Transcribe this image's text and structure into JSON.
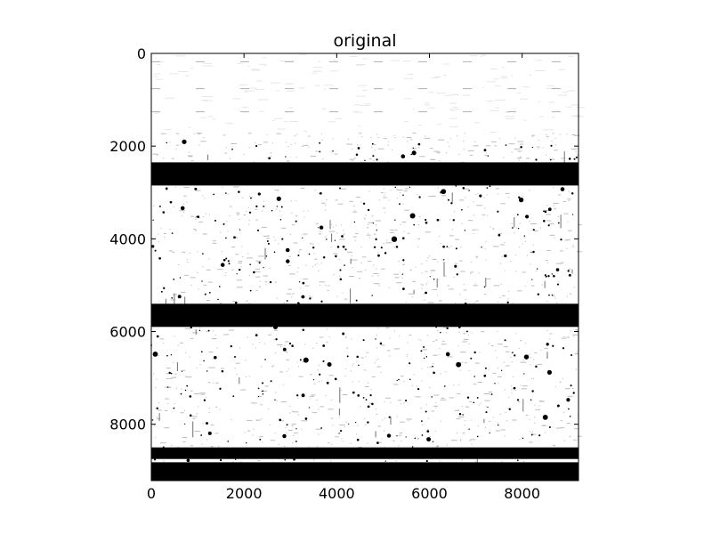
{
  "chart_data": {
    "type": "heatmap",
    "title": "original",
    "xlabel": "",
    "ylabel": "",
    "xlim": [
      0,
      9216
    ],
    "ylim": [
      9216,
      0
    ],
    "y_inverted": true,
    "grid": false,
    "colormap": "grayscale (white = low, black = high)",
    "x_ticks": [
      0,
      2000,
      4000,
      6000,
      8000
    ],
    "y_ticks": [
      0,
      2000,
      4000,
      6000,
      8000
    ],
    "x_tick_labels": [
      "0",
      "2000",
      "4000",
      "6000",
      "8000"
    ],
    "y_tick_labels": [
      "0",
      "2000",
      "4000",
      "6000",
      "8000"
    ],
    "saturated_bands_y": [
      [
        2350,
        2850
      ],
      [
        5400,
        5900
      ],
      [
        8500,
        8750
      ],
      [
        8820,
        9216
      ]
    ],
    "sparse_region_y": [
      0,
      1700
    ]
  }
}
